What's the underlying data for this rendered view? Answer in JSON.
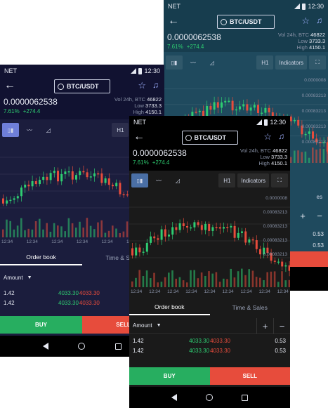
{
  "status": {
    "carrier": "NET",
    "time": "12:30"
  },
  "market": {
    "pair": "BTC/USDT",
    "price": "0.0000062538",
    "change_pct": "7.61%",
    "change_abs": "+274.4",
    "vol_label": "Vol 24h, BTC",
    "vol_value": "46822",
    "low_label": "Low",
    "low_value": "3733.3",
    "high_label": "High",
    "high_value": "4150.1"
  },
  "toolbar": {
    "timeframe": "H1",
    "indicators": "Indicators"
  },
  "chart_data": {
    "type": "candlestick",
    "x_ticks": [
      "12:34",
      "12:34",
      "12:34",
      "12:34",
      "12:34",
      "12:34",
      "12:34",
      "12:34",
      "12:34"
    ],
    "price_labels": [
      "0.0000008",
      "0.00083213",
      "0.00083213",
      "0.00083213",
      "0.00083213"
    ],
    "colors": {
      "up": "#2ecc71",
      "down": "#e74c3c"
    }
  },
  "tabs": {
    "order_book": "Order book",
    "time_sales": "Time & Sales"
  },
  "orderbook": {
    "amount_label": "Amount",
    "rows": [
      {
        "amount": "1.42",
        "bid": "4033.30",
        "ask": "4033.30",
        "qty": "0.53"
      },
      {
        "amount": "1.42",
        "bid": "4033.30",
        "ask": "4033.30",
        "qty": "0.53"
      }
    ]
  },
  "actions": {
    "buy": "BUY",
    "sell": "SELL"
  },
  "icons": {
    "back": "arrow-left-icon",
    "search": "search-icon",
    "star": "star-icon",
    "alert": "bell-icon",
    "candles": "candlestick-icon",
    "line": "line-chart-icon",
    "area": "area-chart-icon",
    "fullscreen": "fullscreen-icon"
  }
}
